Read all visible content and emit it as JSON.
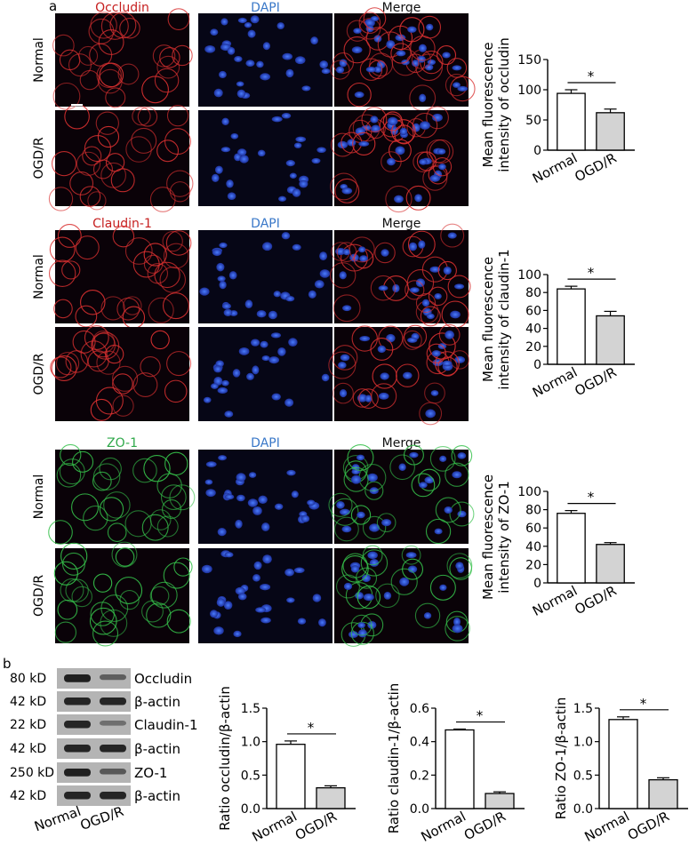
{
  "figure": {
    "panel_labels": [
      "a",
      "b"
    ],
    "micrograph_column_headers": [
      [
        "Occludin",
        "DAPI",
        "Merge"
      ],
      [
        "Claudin-1",
        "DAPI",
        "Merge"
      ],
      [
        "ZO-1",
        "DAPI",
        "Merge"
      ]
    ],
    "row_labels": [
      "Normal",
      "OGD/R"
    ]
  },
  "colors": {
    "red_stain": "#c62020",
    "blue_stain": "#3a78c8",
    "green_stain": "#2fa84a",
    "normal_bar": "#ffffff",
    "ogdr_bar": "#d3d3d3",
    "axis": "#000000"
  },
  "western_blot": {
    "rows": [
      {
        "kd": "80 kD",
        "protein": "Occludin",
        "normal": 0.95,
        "ogdr": 0.4
      },
      {
        "kd": "42 kD",
        "protein": "β-actin",
        "normal": 0.9,
        "ogdr": 0.9
      },
      {
        "kd": "22 kD",
        "protein": "Claudin-1",
        "normal": 0.9,
        "ogdr": 0.25
      },
      {
        "kd": "42 kD",
        "protein": "β-actin",
        "normal": 0.9,
        "ogdr": 0.9
      },
      {
        "kd": "250 kD",
        "protein": "ZO-1",
        "normal": 0.95,
        "ogdr": 0.45
      },
      {
        "kd": "42 kD",
        "protein": "β-actin",
        "normal": 0.9,
        "ogdr": 0.9
      }
    ],
    "lane_labels": [
      "Normal",
      "OGD/R"
    ]
  },
  "chart_data": [
    {
      "type": "bar",
      "categories": [
        "Normal",
        "OGD/R"
      ],
      "values": [
        94,
        62
      ],
      "errors": [
        6,
        6
      ],
      "ylabel": "Mean fluorescence\nintensity of occludin",
      "ylim": [
        0,
        150
      ],
      "yticks": [
        "0",
        "50",
        "100",
        "150"
      ],
      "significance": "*"
    },
    {
      "type": "bar",
      "categories": [
        "Normal",
        "OGD/R"
      ],
      "values": [
        84,
        54
      ],
      "errors": [
        3,
        5
      ],
      "ylabel": "Mean fluorescence\nintensity of claudin-1",
      "ylim": [
        0,
        100
      ],
      "yticks": [
        "0",
        "20",
        "40",
        "60",
        "80",
        "100"
      ],
      "significance": "*"
    },
    {
      "type": "bar",
      "categories": [
        "Normal",
        "OGD/R"
      ],
      "values": [
        76,
        42
      ],
      "errors": [
        3,
        2
      ],
      "ylabel": "Mean fluorescence\nintensity of ZO-1",
      "ylim": [
        0,
        100
      ],
      "yticks": [
        "0",
        "20",
        "40",
        "60",
        "80",
        "100"
      ],
      "significance": "*"
    },
    {
      "type": "bar",
      "categories": [
        "Normal",
        "OGD/R"
      ],
      "values": [
        0.96,
        0.31
      ],
      "errors": [
        0.05,
        0.03
      ],
      "ylabel": "Ratio occludin/β-actin",
      "ylim": [
        0,
        1.5
      ],
      "yticks": [
        "0.0",
        "0.5",
        "1.0",
        "1.5"
      ],
      "significance": "*"
    },
    {
      "type": "bar",
      "categories": [
        "Normal",
        "OGD/R"
      ],
      "values": [
        0.47,
        0.09
      ],
      "errors": [
        0.005,
        0.01
      ],
      "ylabel": "Ratio claudin-1/β-actin",
      "ylim": [
        0,
        0.6
      ],
      "yticks": [
        "0.0",
        "0.2",
        "0.4",
        "0.6"
      ],
      "significance": "*"
    },
    {
      "type": "bar",
      "categories": [
        "Normal",
        "OGD/R"
      ],
      "values": [
        1.33,
        0.43
      ],
      "errors": [
        0.04,
        0.03
      ],
      "ylabel": "Ratio ZO-1/β-actin",
      "ylim": [
        0,
        1.5
      ],
      "yticks": [
        "0.0",
        "0.5",
        "1.0",
        "1.5"
      ],
      "significance": "*"
    }
  ]
}
